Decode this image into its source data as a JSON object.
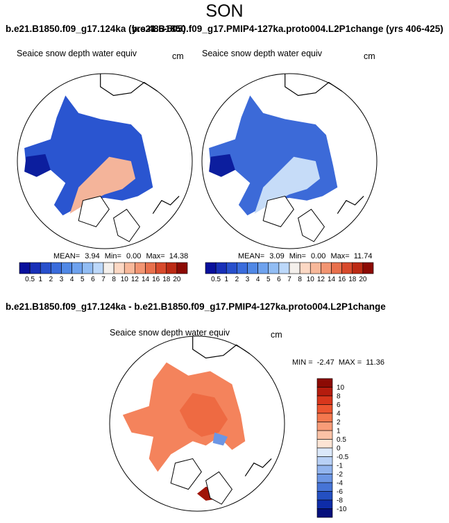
{
  "figure": {
    "season_title": "SON",
    "left_run_title": "b.e21.B1850.f09_g17.124ka (yrs 486-505)",
    "right_run_title": "b.e21.B1850.f09_g17.PMIP4-127ka.proto004.L2P1change (yrs 406-425)",
    "diff_title": "b.e21.B1850.f09_g17.124ka - b.e21.B1850.f09_g17.PMIP4-127ka.proto004.L2P1change"
  },
  "chart_data": [
    {
      "type": "heatmap",
      "panel": "left",
      "title": "Seaice snow depth water equiv",
      "units": "cm",
      "projection": "north polar stereographic",
      "stats": {
        "mean_label": "MEAN=",
        "mean": "3.94",
        "min_label": "Min=",
        "min": "0.00",
        "max_label": "Max=",
        "max": "14.38"
      },
      "colorbar_ticks": [
        "0.5",
        "1",
        "2",
        "3",
        "4",
        "5",
        "6",
        "7",
        "8",
        "10",
        "12",
        "14",
        "16",
        "18",
        "20"
      ],
      "colorbar_colors": [
        "#08109c",
        "#1830b8",
        "#2850cc",
        "#3a6cdc",
        "#5088e6",
        "#6ea2ee",
        "#92bdf4",
        "#bcd8fa",
        "#f4f0ec",
        "#fcd8c4",
        "#f8b89a",
        "#f29572",
        "#e8704c",
        "#d84a2c",
        "#bc2a14",
        "#8c0a04"
      ]
    },
    {
      "type": "heatmap",
      "panel": "right",
      "title": "Seaice snow depth water equiv",
      "units": "cm",
      "projection": "north polar stereographic",
      "stats": {
        "mean_label": "MEAN=",
        "mean": "3.09",
        "min_label": "Min=",
        "min": "0.00",
        "max_label": "Max=",
        "max": "11.74"
      },
      "colorbar_ticks": [
        "0.5",
        "1",
        "2",
        "3",
        "4",
        "5",
        "6",
        "7",
        "8",
        "10",
        "12",
        "14",
        "16",
        "18",
        "20"
      ],
      "colorbar_colors": [
        "#08109c",
        "#1830b8",
        "#2850cc",
        "#3a6cdc",
        "#5088e6",
        "#6ea2ee",
        "#92bdf4",
        "#bcd8fa",
        "#f4f0ec",
        "#fcd8c4",
        "#f8b89a",
        "#f29572",
        "#e8704c",
        "#d84a2c",
        "#bc2a14",
        "#8c0a04"
      ]
    },
    {
      "type": "heatmap",
      "panel": "difference",
      "title": "Seaice snow depth water equiv",
      "units": "cm",
      "projection": "north polar stereographic",
      "stats": {
        "min_label": "MIN =",
        "min": "-2.47",
        "max_label": "MAX =",
        "max": "11.36"
      },
      "colorbar_ticks": [
        "10",
        "8",
        "6",
        "4",
        "2",
        "1",
        "0.5",
        "0",
        "-0.5",
        "-1",
        "-2",
        "-4",
        "-6",
        "-8",
        "-10"
      ],
      "colorbar_colors": [
        "#8c0a04",
        "#b51c0e",
        "#d8361c",
        "#ec5530",
        "#f4784e",
        "#f89c78",
        "#fbc2a6",
        "#fde4d4",
        "#dbe8fa",
        "#b8d0f6",
        "#92b4ee",
        "#6c96e4",
        "#4674d6",
        "#2450c2",
        "#0e2ca8",
        "#06107c"
      ]
    }
  ]
}
